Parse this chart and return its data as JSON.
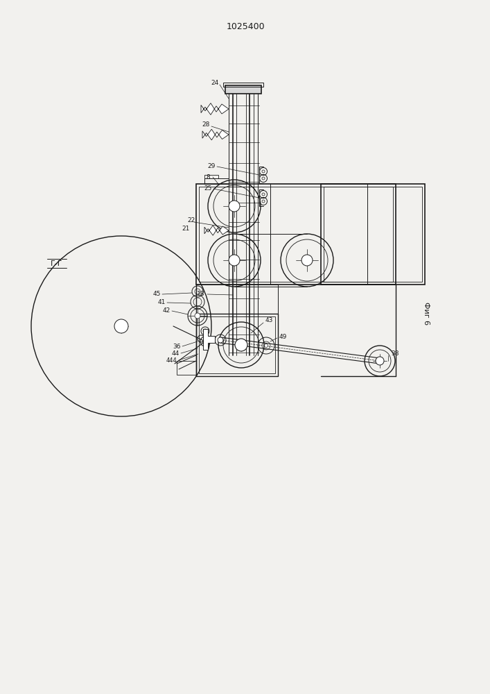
{
  "title": "1025400",
  "fig_label": "Фиг 6",
  "section_label": "Г-Г",
  "bg": "#f2f1ee",
  "lc": "#1a1a1a",
  "figsize": [
    7.07,
    10.0
  ],
  "dpi": 100
}
